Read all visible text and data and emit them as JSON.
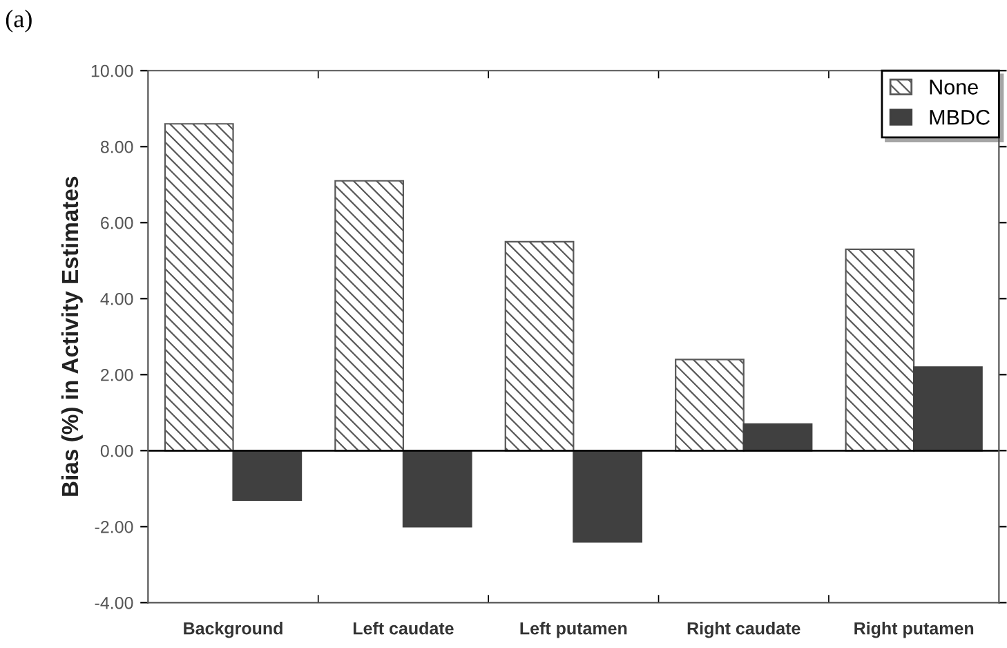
{
  "chart_data": {
    "type": "bar",
    "ylabel": "Bias (%) in Activity Estimates",
    "annotations": [
      "(a)"
    ],
    "categories": [
      "Background",
      "Left caudate",
      "Left putamen",
      "Right caudate",
      "Right putamen"
    ],
    "series": [
      {
        "name": "None",
        "color": "#595959",
        "values": [
          8.6,
          7.1,
          5.5,
          2.4,
          5.3
        ]
      },
      {
        "name": "MBDC",
        "color": "#404040",
        "values": [
          -1.3,
          -2.0,
          -2.4,
          0.7,
          2.2
        ]
      }
    ],
    "ylim": [
      -4,
      10
    ],
    "yticks": [
      {
        "value": -4,
        "label": "-4.00"
      },
      {
        "value": -2,
        "label": "-2.00"
      },
      {
        "value": 0,
        "label": "0.00"
      },
      {
        "value": 2,
        "label": "2.00"
      },
      {
        "value": 4,
        "label": "4.00"
      },
      {
        "value": 6,
        "label": "6.00"
      },
      {
        "value": 8,
        "label": "8.00"
      },
      {
        "value": 10,
        "label": "10.00"
      }
    ],
    "ref_lines": [
      {
        "axis": "y",
        "value": 0,
        "color": "#000000"
      }
    ],
    "legend": "top right",
    "grid": false
  }
}
